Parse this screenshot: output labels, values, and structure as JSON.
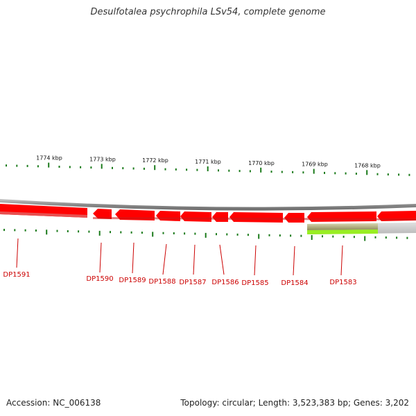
{
  "title": "Desulfotalea psychrophila LSv54, complete genome",
  "footer": {
    "accession": "Accession: NC_006138",
    "summary": "Topology: circular; Length: 3,523,383 bp; Genes: 3,202"
  },
  "colors": {
    "gene": "#ff0000",
    "gene_shadow": "#cc2222",
    "tick": "#1a7a1a",
    "label": "#cc0000",
    "backbone": "#8a8a8a",
    "feature_green": "#99ee22",
    "feature_olive": "#aaa877"
  },
  "scale": {
    "ticks_kbp": [
      {
        "label": "1774 kbp",
        "pos": 1774
      },
      {
        "label": "1773 kbp",
        "pos": 1773
      },
      {
        "label": "1772 kbp",
        "pos": 1772
      },
      {
        "label": "1771 kbp",
        "pos": 1771
      },
      {
        "label": "1770 kbp",
        "pos": 1770
      },
      {
        "label": "1769 kbp",
        "pos": 1769
      },
      {
        "label": "1768 kbp",
        "pos": 1768
      }
    ]
  },
  "genes": [
    {
      "name": "DP1591"
    },
    {
      "name": "DP1590"
    },
    {
      "name": "DP1589"
    },
    {
      "name": "DP1588"
    },
    {
      "name": "DP1587"
    },
    {
      "name": "DP1586"
    },
    {
      "name": "DP1585"
    },
    {
      "name": "DP1584"
    },
    {
      "name": "DP1583"
    }
  ]
}
